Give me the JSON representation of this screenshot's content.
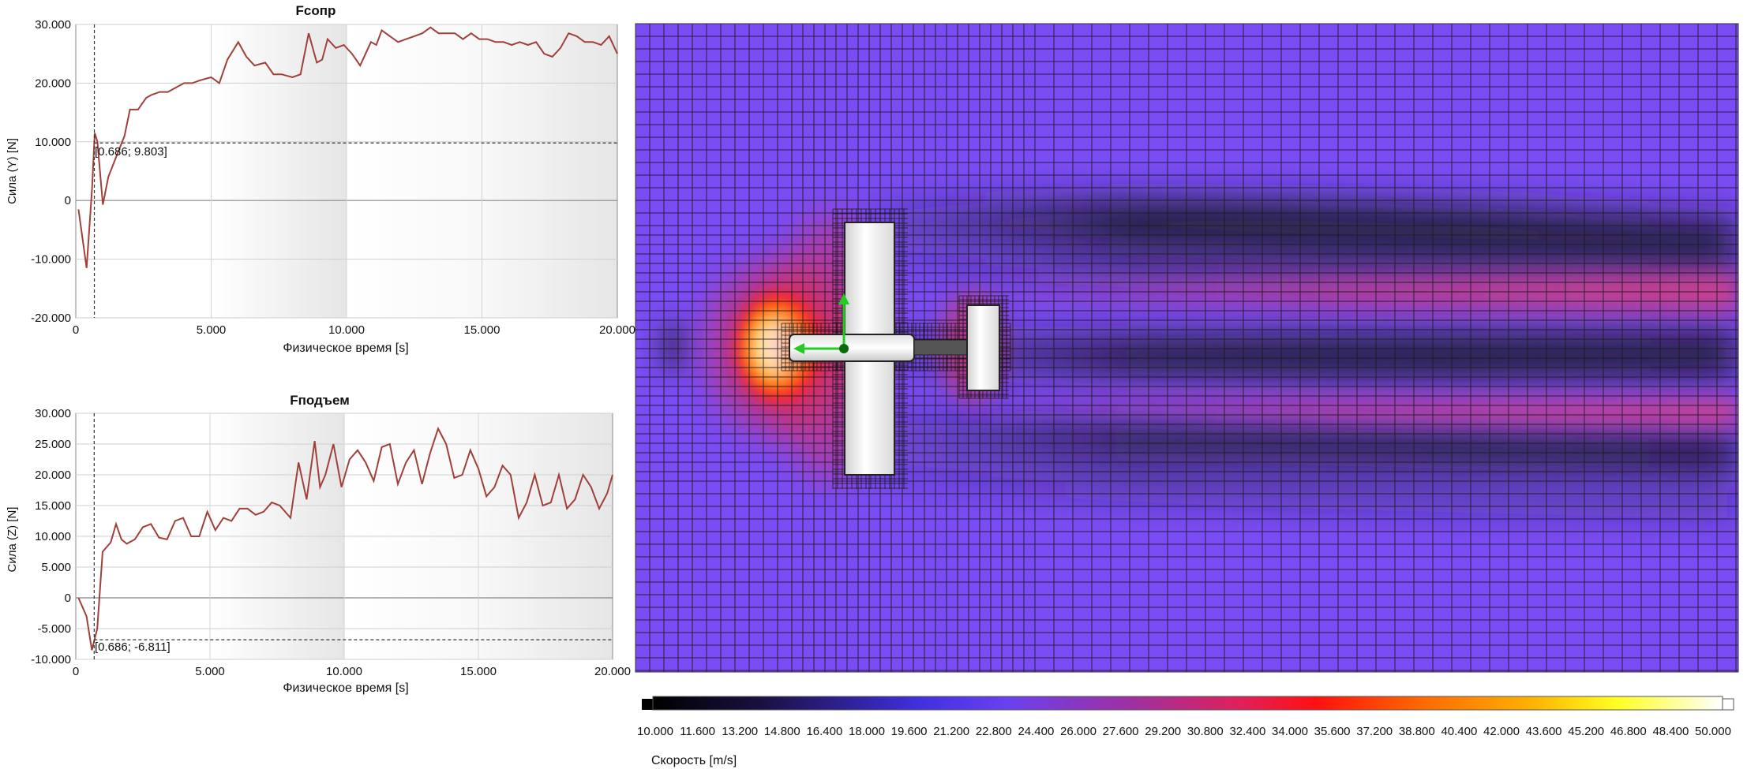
{
  "chart_data": [
    {
      "type": "line",
      "title": "Fсопр",
      "xlabel": "Физическое время [s]",
      "ylabel": "Сила (Y) [N]",
      "xlim": [
        0,
        20
      ],
      "ylim": [
        -20,
        30
      ],
      "xticks": [
        "0",
        "5.000",
        "10.000",
        "15.000",
        "20.000"
      ],
      "yticks": [
        "-20.000",
        "-10.000",
        "0",
        "10.000",
        "20.000",
        "30.000"
      ],
      "cursor": {
        "x": 0.686,
        "y": 9.803,
        "label": "[0.686; 9.803]"
      },
      "color": "#a0403a",
      "x": [
        0.1,
        0.4,
        0.6,
        0.7,
        0.8,
        1.0,
        1.2,
        1.5,
        1.8,
        2.0,
        2.3,
        2.6,
        2.8,
        3.1,
        3.4,
        3.8,
        4.0,
        4.3,
        4.6,
        5.0,
        5.3,
        5.6,
        6.0,
        6.3,
        6.6,
        7.0,
        7.3,
        7.6,
        8.0,
        8.3,
        8.6,
        8.9,
        9.1,
        9.3,
        9.6,
        9.9,
        10.2,
        10.5,
        10.9,
        11.1,
        11.3,
        11.6,
        11.9,
        12.2,
        12.5,
        12.8,
        13.1,
        13.4,
        13.7,
        14.0,
        14.3,
        14.6,
        14.9,
        15.2,
        15.5,
        15.8,
        16.1,
        16.4,
        16.7,
        17.0,
        17.3,
        17.6,
        17.9,
        18.2,
        18.5,
        18.8,
        19.1,
        19.4,
        19.7,
        20.0
      ],
      "y": [
        -1.5,
        -11.5,
        2,
        11.5,
        10,
        -0.7,
        4,
        7.5,
        11,
        15.5,
        15.5,
        17.5,
        18,
        18.5,
        18.5,
        19.5,
        20,
        20,
        20.5,
        21,
        20,
        24,
        27,
        24.5,
        23,
        23.5,
        21.5,
        21.5,
        21,
        21.5,
        28.5,
        23.5,
        24,
        27.5,
        26,
        26.5,
        25,
        23,
        27,
        26.5,
        29,
        28,
        27,
        27.5,
        28,
        28.5,
        29.5,
        28.5,
        28.5,
        28.5,
        27.5,
        28.5,
        27.5,
        27.5,
        27,
        27,
        26.5,
        27,
        26.5,
        27,
        25,
        24.5,
        26,
        28.5,
        28,
        27,
        27,
        26.5,
        28,
        25
      ]
    },
    {
      "type": "line",
      "title": "Fподъем",
      "xlabel": "Физическое время [s]",
      "ylabel": "Сила (Z) [N]",
      "xlim": [
        0,
        20
      ],
      "ylim": [
        -10,
        30
      ],
      "xticks": [
        "0",
        "5.000",
        "10.000",
        "15.000",
        "20.000"
      ],
      "yticks": [
        "-10.000",
        "-5.000",
        "0",
        "5.000",
        "10.000",
        "15.000",
        "20.000",
        "25.000",
        "30.000"
      ],
      "cursor": {
        "x": 0.686,
        "y": -6.811,
        "label": "[0.686; -6.811]"
      },
      "color": "#a0403a",
      "x": [
        0.1,
        0.4,
        0.6,
        0.8,
        1.0,
        1.3,
        1.5,
        1.7,
        1.9,
        2.2,
        2.5,
        2.8,
        3.1,
        3.4,
        3.7,
        4.0,
        4.3,
        4.6,
        4.9,
        5.2,
        5.5,
        5.8,
        6.1,
        6.4,
        6.7,
        7.0,
        7.3,
        7.6,
        8.0,
        8.3,
        8.6,
        8.9,
        9.1,
        9.3,
        9.6,
        9.9,
        10.2,
        10.5,
        10.8,
        11.1,
        11.4,
        11.7,
        12.0,
        12.3,
        12.6,
        12.9,
        13.2,
        13.5,
        13.8,
        14.1,
        14.4,
        14.7,
        15.0,
        15.3,
        15.6,
        15.9,
        16.2,
        16.5,
        16.8,
        17.1,
        17.4,
        17.7,
        18.0,
        18.3,
        18.6,
        18.9,
        19.2,
        19.5,
        19.8,
        20.0
      ],
      "y": [
        0,
        -3,
        -8.5,
        -5,
        7.5,
        9,
        12,
        9.5,
        8.8,
        9.5,
        11.5,
        12,
        9.8,
        9.5,
        12.5,
        13,
        10,
        10,
        14,
        11,
        13,
        12.5,
        14.5,
        14.5,
        13.5,
        14,
        15.5,
        15,
        13,
        22,
        16,
        25.5,
        18,
        20,
        25,
        18,
        22.5,
        24,
        22,
        19,
        24.5,
        25,
        18.5,
        22,
        24,
        18.5,
        23.5,
        27.5,
        25,
        19.5,
        20,
        24,
        21,
        16.5,
        18,
        21.5,
        20,
        13,
        15.5,
        20,
        15,
        15.5,
        20,
        14.5,
        16,
        20,
        18,
        14.5,
        17,
        20
      ]
    },
    {
      "type": "heatmap",
      "colorbar_label": "Скорость [m/s]",
      "colorbar_ticks": [
        "10.000",
        "11.600",
        "13.200",
        "14.800",
        "16.400",
        "18.000",
        "19.600",
        "21.200",
        "22.800",
        "24.400",
        "26.000",
        "27.600",
        "29.200",
        "30.800",
        "32.400",
        "34.000",
        "35.600",
        "37.200",
        "38.800",
        "40.400",
        "42.000",
        "43.600",
        "45.200",
        "46.800",
        "48.400",
        "50.000"
      ],
      "colorbar_range": [
        10,
        50
      ],
      "colors": {
        "background": "#7a4cf4",
        "mesh": "#1a1a1a",
        "dark_wake": "#1e1b2e",
        "magenta_wake": "#c83c8c",
        "hot": "#ff2a2a",
        "bright": "#fff7c0",
        "axis_x": "#22cc22",
        "axis_y": "#22cc22"
      },
      "icons": [
        "airplane-model",
        "coordinate-axes-icon"
      ]
    }
  ]
}
